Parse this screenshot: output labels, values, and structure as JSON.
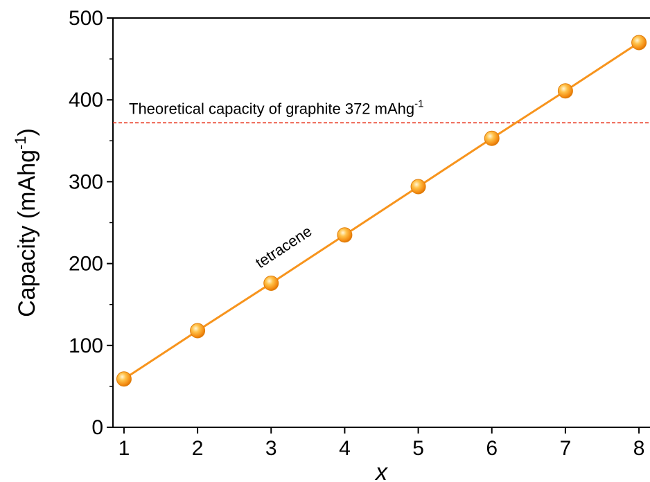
{
  "chart_data": {
    "type": "line",
    "x": [
      1,
      2,
      3,
      4,
      5,
      6,
      7,
      8
    ],
    "series": [
      {
        "values": [
          59,
          118,
          176,
          235,
          294,
          353,
          411,
          470
        ],
        "color": "#f7941d",
        "marker": "sphere"
      }
    ],
    "xlabel": "x",
    "ylabel_main": "Capacity (mAhg",
    "ylabel_sup": "-1",
    "ylabel_tail": ")",
    "xlim": [
      0.85,
      8.15
    ],
    "ylim": [
      0,
      500
    ],
    "xticks": [
      "1",
      "2",
      "3",
      "4",
      "5",
      "6",
      "7",
      "8"
    ],
    "yticks": [
      "0",
      "100",
      "200",
      "300",
      "400",
      "500"
    ],
    "reference_line": {
      "value": 372,
      "color": "#e8361f",
      "style": "dashed",
      "label_main": "Theoretical capacity of graphite 372 mAhg",
      "label_sup": "-1"
    },
    "annotation": "tetracene",
    "grid": false
  }
}
